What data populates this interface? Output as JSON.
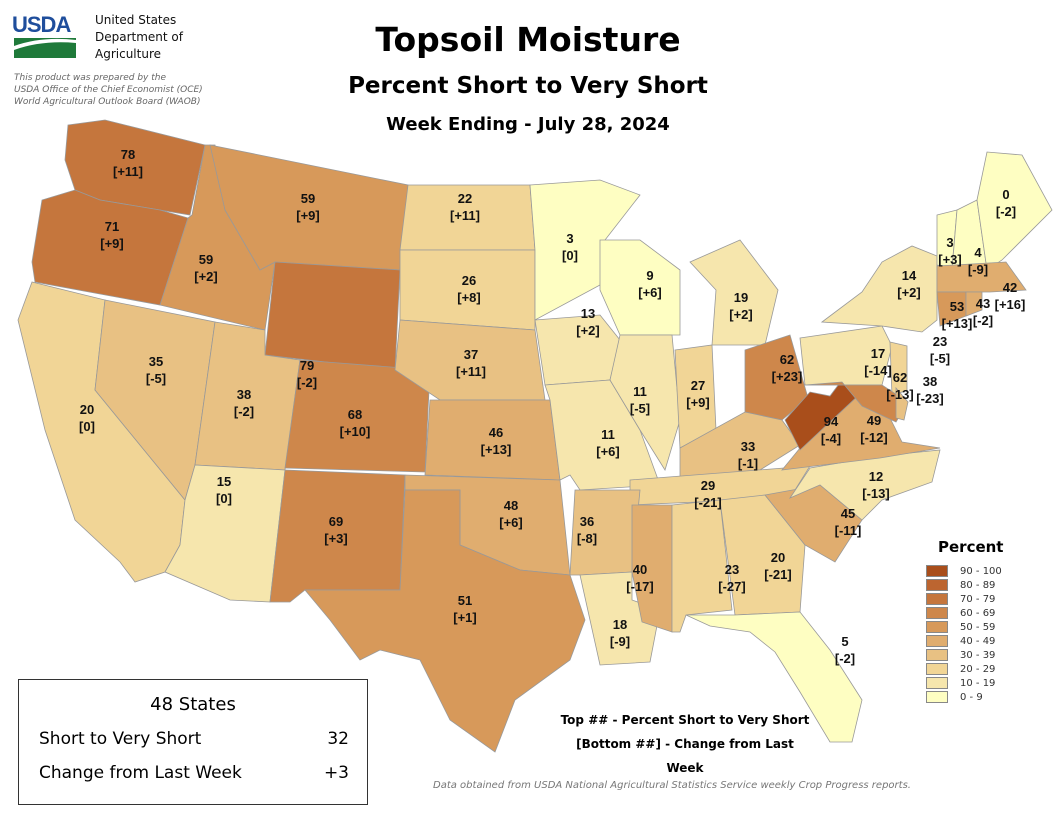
{
  "header": {
    "agency_lines": [
      "United States",
      "Department of",
      "Agriculture"
    ],
    "logo_text": "USDA",
    "prepared_lines": [
      "This product was prepared by the",
      "USDA Office of the Chief Economist (OCE)",
      "World Agricultural Outlook Board (WAOB)"
    ],
    "title": "Topsoil Moisture",
    "subtitle": "Percent Short to Very Short",
    "week": "Week Ending - July 28, 2024"
  },
  "states": [
    {
      "code": "WA",
      "top": "78",
      "bottom": "[+11]"
    },
    {
      "code": "OR",
      "top": "71",
      "bottom": "[+9]"
    },
    {
      "code": "CA",
      "top": "20",
      "bottom": "[0]"
    },
    {
      "code": "ID",
      "top": "59",
      "bottom": "[+2]"
    },
    {
      "code": "NV",
      "top": "35",
      "bottom": "[-5]"
    },
    {
      "code": "MT",
      "top": "59",
      "bottom": "[+9]"
    },
    {
      "code": "WY",
      "top": "79",
      "bottom": "[-2]"
    },
    {
      "code": "UT",
      "top": "38",
      "bottom": "[-2]"
    },
    {
      "code": "AZ",
      "top": "15",
      "bottom": "[0]"
    },
    {
      "code": "CO",
      "top": "68",
      "bottom": "[+10]"
    },
    {
      "code": "NM",
      "top": "69",
      "bottom": "[+3]"
    },
    {
      "code": "ND",
      "top": "22",
      "bottom": "[+11]"
    },
    {
      "code": "SD",
      "top": "26",
      "bottom": "[+8]"
    },
    {
      "code": "NE",
      "top": "37",
      "bottom": "[+11]"
    },
    {
      "code": "KS",
      "top": "46",
      "bottom": "[+13]"
    },
    {
      "code": "OK",
      "top": "48",
      "bottom": "[+6]"
    },
    {
      "code": "TX",
      "top": "51",
      "bottom": "[+1]"
    },
    {
      "code": "MN",
      "top": "3",
      "bottom": "[0]"
    },
    {
      "code": "IA",
      "top": "13",
      "bottom": "[+2]"
    },
    {
      "code": "MO",
      "top": "11",
      "bottom": "[+6]"
    },
    {
      "code": "WI",
      "top": "9",
      "bottom": "[+6]"
    },
    {
      "code": "IL",
      "top": "11",
      "bottom": "[-5]"
    },
    {
      "code": "IN",
      "top": "27",
      "bottom": "[+9]"
    },
    {
      "code": "MI",
      "top": "19",
      "bottom": "[+2]"
    },
    {
      "code": "OH",
      "top": "62",
      "bottom": "[+23]"
    },
    {
      "code": "KY",
      "top": "33",
      "bottom": "[-1]"
    },
    {
      "code": "TN",
      "top": "29",
      "bottom": "[-21]"
    },
    {
      "code": "AR",
      "top": "36",
      "bottom": "[-8]"
    },
    {
      "code": "LA",
      "top": "18",
      "bottom": "[-9]"
    },
    {
      "code": "MS",
      "top": "40",
      "bottom": "[-17]"
    },
    {
      "code": "AL",
      "top": "23",
      "bottom": "[-27]"
    },
    {
      "code": "GA",
      "top": "20",
      "bottom": "[-21]"
    },
    {
      "code": "FL",
      "top": "5",
      "bottom": "[-2]"
    },
    {
      "code": "SC",
      "top": "45",
      "bottom": "[-11]"
    },
    {
      "code": "NC",
      "top": "12",
      "bottom": "[-13]"
    },
    {
      "code": "VA",
      "top": "49",
      "bottom": "[-12]"
    },
    {
      "code": "WV",
      "top": "94",
      "bottom": "[-4]"
    },
    {
      "code": "PA",
      "top": "17",
      "bottom": "[-14]"
    },
    {
      "code": "NY",
      "top": "14",
      "bottom": "[+2]"
    },
    {
      "code": "NJ",
      "top": "23",
      "bottom": "[-5]"
    },
    {
      "code": "MD",
      "top": "62",
      "bottom": "[-13]"
    },
    {
      "code": "DE",
      "top": "38",
      "bottom": "[-23]"
    },
    {
      "code": "VT",
      "top": "3",
      "bottom": "[+3]"
    },
    {
      "code": "NH",
      "top": "4",
      "bottom": "[-9]"
    },
    {
      "code": "ME",
      "top": "0",
      "bottom": "[-2]"
    },
    {
      "code": "MA",
      "top": "42",
      "bottom": "[+16]"
    },
    {
      "code": "CT",
      "top": "53",
      "bottom": "[+13]"
    },
    {
      "code": "RI",
      "top": "43",
      "bottom": "[-2]"
    }
  ],
  "legend": {
    "title": "Percent",
    "items": [
      {
        "label": "90 - 100",
        "color": "#A94E1B"
      },
      {
        "label": "80 - 89",
        "color": "#BC6530"
      },
      {
        "label": "70 - 79",
        "color": "#C5763D"
      },
      {
        "label": "60 - 69",
        "color": "#CE874B"
      },
      {
        "label": "50 - 59",
        "color": "#D7995A"
      },
      {
        "label": "40 - 49",
        "color": "#E0AD6F"
      },
      {
        "label": "30 - 39",
        "color": "#E8C183"
      },
      {
        "label": "20 - 29",
        "color": "#F1D596"
      },
      {
        "label": "10 - 19",
        "color": "#F6E6AD"
      },
      {
        "label": "0 - 9",
        "color": "#FEFEC2"
      }
    ]
  },
  "summary": {
    "heading": "48 States",
    "rows": [
      {
        "label": "Short to Very Short",
        "value": "32"
      },
      {
        "label": "Change from Last Week",
        "value": "+3"
      }
    ]
  },
  "note": {
    "line1": "Top ## - Percent Short to Very Short",
    "line2": "[Bottom ##] - Change from Last Week"
  },
  "source": "Data obtained from USDA National Agricultural Statistics Service weekly Crop Progress reports."
}
